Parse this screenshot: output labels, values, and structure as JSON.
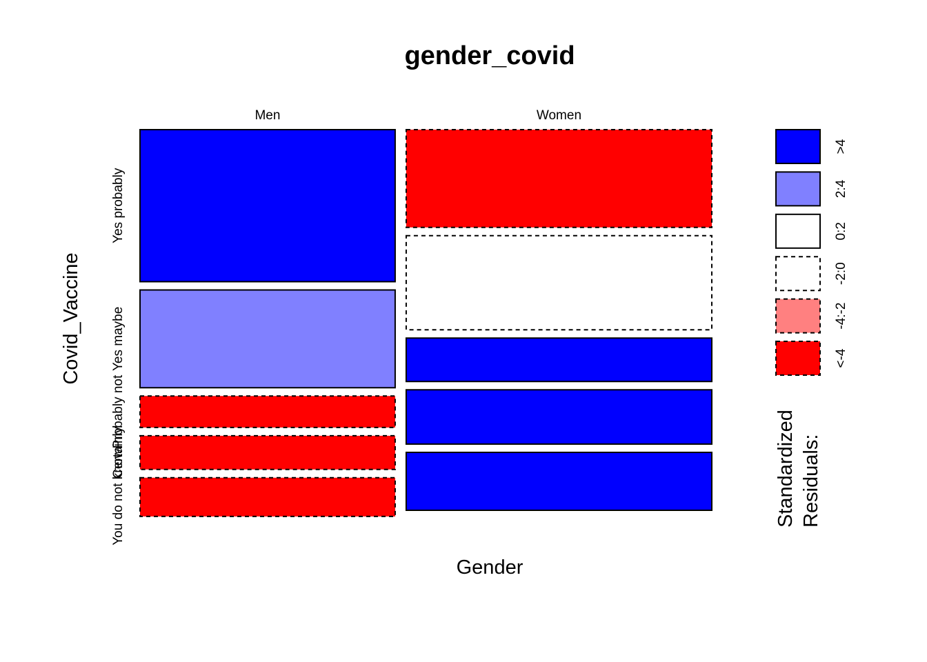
{
  "chart_data": {
    "type": "mosaic",
    "title": "gender_covid",
    "xlabel": "Gender",
    "ylabel": "Covid_Vaccine",
    "columns": [
      "Men",
      "Women"
    ],
    "column_proportions": [
      0.455,
      0.545
    ],
    "rows": [
      "Yes probably",
      "Yes maybe",
      "Probably not",
      "Certainly",
      "You do not know"
    ],
    "cells": {
      "Men": {
        "proportions": [
          0.42,
          0.27,
          0.087,
          0.093,
          0.107
        ],
        "residual_class": [
          "gt4",
          "2to4",
          "lt_neg4",
          "lt_neg4",
          "lt_neg4"
        ]
      },
      "Women": {
        "proportions": [
          0.27,
          0.26,
          0.12,
          0.15,
          0.16
        ],
        "residual_class": [
          "lt_neg4",
          "neg2to0",
          "gt4",
          "gt4",
          "gt4"
        ]
      }
    },
    "legend": {
      "title": "Standardized Residuals:",
      "title_lines": [
        "Standardized",
        "Residuals:"
      ],
      "items": [
        {
          "key": "gt4",
          "label": ">4",
          "color": "#0000ff",
          "dashed": false
        },
        {
          "key": "2to4",
          "label": "2:4",
          "color": "#8080ff",
          "dashed": false
        },
        {
          "key": "0to2",
          "label": "0:2",
          "color": "#ffffff",
          "dashed": false
        },
        {
          "key": "neg2to0",
          "label": "-2:0",
          "color": "#ffffff",
          "dashed": true
        },
        {
          "key": "neg4to2",
          "label": "-4:-2",
          "color": "#ff8080",
          "dashed": true
        },
        {
          "key": "lt_neg4",
          "label": "<-4",
          "color": "#ff0000",
          "dashed": true
        }
      ]
    }
  }
}
